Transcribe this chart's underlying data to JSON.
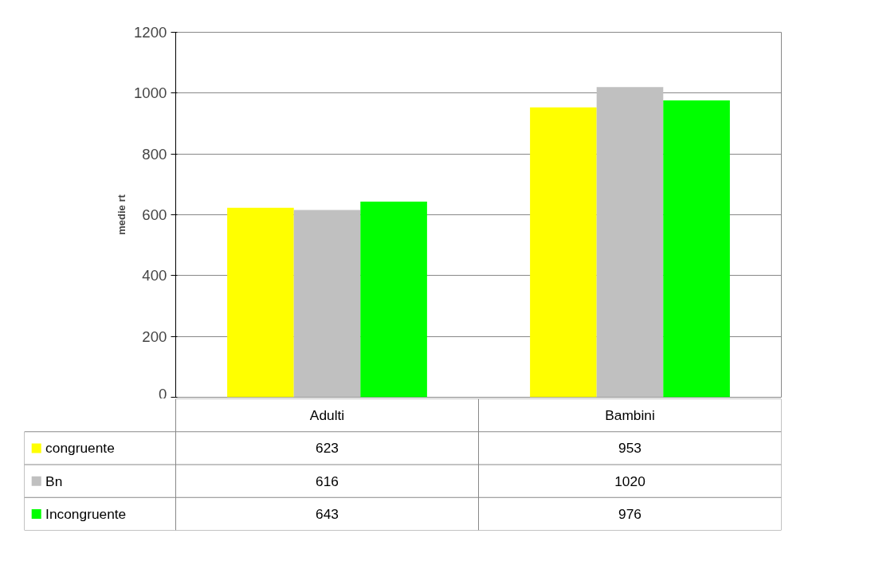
{
  "chart_data": {
    "type": "bar",
    "ylabel": "medie rt",
    "categories": [
      "Adulti",
      "Bambini"
    ],
    "series": [
      {
        "name": "congruente",
        "color": "#ffff00",
        "values": [
          623,
          953
        ]
      },
      {
        "name": "Bn",
        "color": "#c0c0c0",
        "values": [
          616,
          1020
        ]
      },
      {
        "name": "Incongruente",
        "color": "#00ff00",
        "values": [
          643,
          976
        ]
      }
    ],
    "ylim": [
      0,
      1200
    ],
    "yticks": [
      0,
      200,
      400,
      600,
      800,
      1000,
      1200
    ],
    "grid": "y",
    "legend": "bottom",
    "data_labels": true
  }
}
